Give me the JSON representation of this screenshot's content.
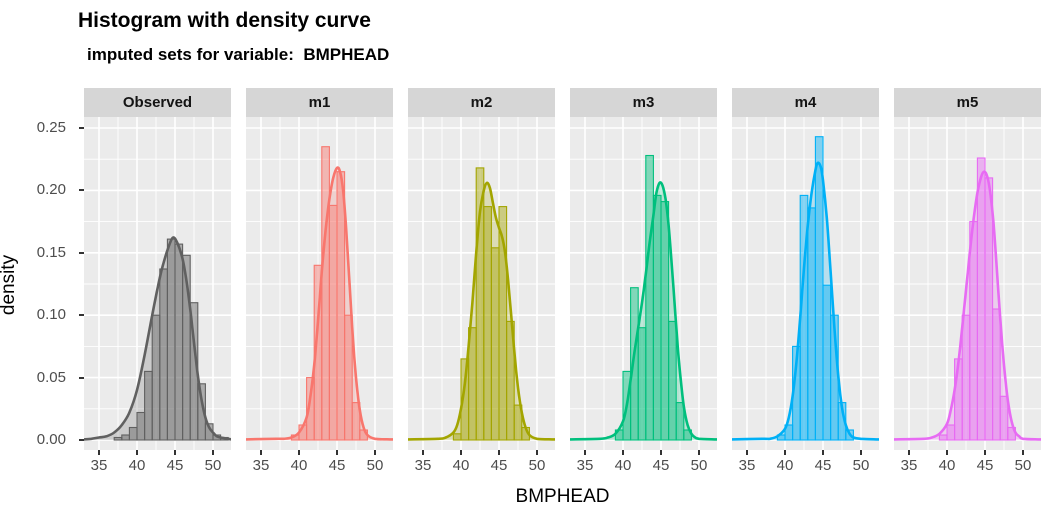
{
  "title": "Histogram with density curve",
  "subtitle": "imputed sets for variable:  BMPHEAD",
  "axes": {
    "y_label": "density",
    "x_label": "BMPHEAD",
    "y_ticks": [
      "0.00",
      "0.05",
      "0.10",
      "0.15",
      "0.20",
      "0.25"
    ],
    "y_tick_values": [
      0.0,
      0.05,
      0.1,
      0.15,
      0.2,
      0.25
    ],
    "x_ticks": [
      "35",
      "40",
      "45",
      "50"
    ],
    "x_tick_values": [
      35,
      40,
      45,
      50
    ]
  },
  "theme": {
    "panel_bg": "#EBEBEB",
    "strip_bg": "#D6D6D6",
    "grid_color": "#FFFFFF",
    "tick_label_color": "#4D4D4D",
    "tick_mark_color": "#333333",
    "title_color": "#000000"
  },
  "chart_data": {
    "type": "histogram+density",
    "facet_variable": "imputation set",
    "x_variable": "BMPHEAD",
    "y_variable": "density",
    "x_domain": [
      33.0,
      52.4
    ],
    "y_domain": [
      0,
      0.25
    ],
    "x_major_gridlines": [
      35,
      40,
      45,
      50
    ],
    "x_minor_gridlines": [
      37.5,
      42.5,
      47.5
    ],
    "y_major_gridlines": [
      0,
      0.05,
      0.1,
      0.15,
      0.2,
      0.25
    ],
    "y_minor_gridlines": [
      0.025,
      0.075,
      0.125,
      0.175,
      0.225
    ],
    "bin_width": 1,
    "facets": [
      {
        "label": "Observed",
        "color": "#606060",
        "bins_start": 37,
        "bin_heights": [
          0.002,
          0.004,
          0.01,
          0.022,
          0.055,
          0.1,
          0.137,
          0.161,
          0.157,
          0.148,
          0.11,
          0.045,
          0.013,
          0.004,
          0.002
        ],
        "density_curve": [
          [
            33,
            0.0005
          ],
          [
            34,
            0.001
          ],
          [
            35,
            0.002
          ],
          [
            36,
            0.003
          ],
          [
            37,
            0.006
          ],
          [
            38,
            0.012
          ],
          [
            39,
            0.022
          ],
          [
            40,
            0.04
          ],
          [
            41,
            0.068
          ],
          [
            42,
            0.1
          ],
          [
            43,
            0.13
          ],
          [
            43.5,
            0.142
          ],
          [
            44,
            0.152
          ],
          [
            44.7,
            0.162
          ],
          [
            45.3,
            0.158
          ],
          [
            46,
            0.145
          ],
          [
            46.5,
            0.128
          ],
          [
            47,
            0.105
          ],
          [
            47.5,
            0.078
          ],
          [
            48,
            0.052
          ],
          [
            48.5,
            0.032
          ],
          [
            49,
            0.018
          ],
          [
            49.5,
            0.01
          ],
          [
            50,
            0.006
          ],
          [
            50.5,
            0.003
          ],
          [
            51,
            0.002
          ],
          [
            52,
            0.001
          ],
          [
            52.4,
            0.0005
          ]
        ]
      },
      {
        "label": "m1",
        "color": "#F8766D",
        "bins_start": 39,
        "bin_heights": [
          0.004,
          0.012,
          0.05,
          0.14,
          0.235,
          0.188,
          0.215,
          0.1,
          0.03,
          0.008
        ],
        "density_curve": [
          [
            33,
            0.0005
          ],
          [
            37,
            0.001
          ],
          [
            38,
            0.001
          ],
          [
            39,
            0.002
          ],
          [
            40,
            0.006
          ],
          [
            41,
            0.018
          ],
          [
            41.5,
            0.035
          ],
          [
            42,
            0.06
          ],
          [
            42.5,
            0.095
          ],
          [
            43,
            0.135
          ],
          [
            43.5,
            0.168
          ],
          [
            44,
            0.193
          ],
          [
            44.5,
            0.21
          ],
          [
            45,
            0.218
          ],
          [
            45.4,
            0.215
          ],
          [
            45.8,
            0.2
          ],
          [
            46.2,
            0.17
          ],
          [
            46.6,
            0.13
          ],
          [
            47,
            0.09
          ],
          [
            47.5,
            0.05
          ],
          [
            48,
            0.024
          ],
          [
            48.5,
            0.01
          ],
          [
            49,
            0.004
          ],
          [
            50,
            0.001
          ],
          [
            52,
            0.0005
          ],
          [
            52.4,
            0.0005
          ]
        ]
      },
      {
        "label": "m2",
        "color": "#A3A500",
        "bins_start": 39,
        "bin_heights": [
          0.005,
          0.065,
          0.09,
          0.218,
          0.187,
          0.154,
          0.187,
          0.095,
          0.028,
          0.01
        ],
        "density_curve": [
          [
            33,
            0.0005
          ],
          [
            37,
            0.001
          ],
          [
            38,
            0.002
          ],
          [
            39,
            0.006
          ],
          [
            39.5,
            0.012
          ],
          [
            40,
            0.025
          ],
          [
            40.5,
            0.045
          ],
          [
            41,
            0.075
          ],
          [
            41.5,
            0.11
          ],
          [
            42,
            0.15
          ],
          [
            42.5,
            0.183
          ],
          [
            43,
            0.2
          ],
          [
            43.4,
            0.206
          ],
          [
            43.8,
            0.202
          ],
          [
            44.2,
            0.19
          ],
          [
            44.6,
            0.178
          ],
          [
            45,
            0.17
          ],
          [
            45.4,
            0.163
          ],
          [
            45.8,
            0.15
          ],
          [
            46.2,
            0.128
          ],
          [
            46.6,
            0.1
          ],
          [
            47,
            0.072
          ],
          [
            47.5,
            0.042
          ],
          [
            48,
            0.022
          ],
          [
            48.5,
            0.01
          ],
          [
            49,
            0.004
          ],
          [
            50,
            0.001
          ],
          [
            52,
            0.0005
          ],
          [
            52.4,
            0.0005
          ]
        ]
      },
      {
        "label": "m3",
        "color": "#00BF7D",
        "bins_start": 39,
        "bin_heights": [
          0.008,
          0.055,
          0.122,
          0.09,
          0.228,
          0.196,
          0.191,
          0.095,
          0.03,
          0.008
        ],
        "density_curve": [
          [
            33,
            0.0005
          ],
          [
            37,
            0.001
          ],
          [
            38,
            0.002
          ],
          [
            39,
            0.005
          ],
          [
            40,
            0.015
          ],
          [
            40.5,
            0.028
          ],
          [
            41,
            0.048
          ],
          [
            41.5,
            0.07
          ],
          [
            42,
            0.09
          ],
          [
            42.5,
            0.11
          ],
          [
            43,
            0.133
          ],
          [
            43.5,
            0.158
          ],
          [
            44,
            0.18
          ],
          [
            44.4,
            0.198
          ],
          [
            44.8,
            0.206
          ],
          [
            45.2,
            0.204
          ],
          [
            45.6,
            0.193
          ],
          [
            46,
            0.172
          ],
          [
            46.4,
            0.142
          ],
          [
            46.8,
            0.108
          ],
          [
            47.2,
            0.075
          ],
          [
            47.6,
            0.048
          ],
          [
            48,
            0.027
          ],
          [
            48.5,
            0.012
          ],
          [
            49,
            0.005
          ],
          [
            49.5,
            0.002
          ],
          [
            50,
            0.001
          ],
          [
            52,
            0.0005
          ],
          [
            52.4,
            0.0005
          ]
        ]
      },
      {
        "label": "m4",
        "color": "#00B0F6",
        "bins_start": 39,
        "bin_heights": [
          0.004,
          0.012,
          0.075,
          0.196,
          0.186,
          0.243,
          0.124,
          0.1,
          0.03,
          0.008
        ],
        "density_curve": [
          [
            33,
            0.0005
          ],
          [
            37,
            0.001
          ],
          [
            38,
            0.001
          ],
          [
            39,
            0.003
          ],
          [
            40,
            0.009
          ],
          [
            40.5,
            0.018
          ],
          [
            41,
            0.035
          ],
          [
            41.5,
            0.062
          ],
          [
            42,
            0.098
          ],
          [
            42.5,
            0.138
          ],
          [
            43,
            0.172
          ],
          [
            43.5,
            0.198
          ],
          [
            44,
            0.216
          ],
          [
            44.3,
            0.222
          ],
          [
            44.7,
            0.219
          ],
          [
            45,
            0.208
          ],
          [
            45.5,
            0.178
          ],
          [
            46,
            0.135
          ],
          [
            46.5,
            0.09
          ],
          [
            47,
            0.052
          ],
          [
            47.5,
            0.026
          ],
          [
            48,
            0.012
          ],
          [
            48.5,
            0.005
          ],
          [
            49,
            0.002
          ],
          [
            50,
            0.001
          ],
          [
            52,
            0.0005
          ],
          [
            52.4,
            0.0005
          ]
        ]
      },
      {
        "label": "m5",
        "color": "#E76BF3",
        "bins_start": 39,
        "bin_heights": [
          0.004,
          0.012,
          0.065,
          0.1,
          0.175,
          0.226,
          0.21,
          0.105,
          0.035,
          0.01
        ],
        "density_curve": [
          [
            33,
            0.0005
          ],
          [
            37,
            0.001
          ],
          [
            38,
            0.002
          ],
          [
            39,
            0.005
          ],
          [
            40,
            0.013
          ],
          [
            40.5,
            0.024
          ],
          [
            41,
            0.04
          ],
          [
            41.5,
            0.062
          ],
          [
            42,
            0.09
          ],
          [
            42.5,
            0.12
          ],
          [
            43,
            0.15
          ],
          [
            43.5,
            0.177
          ],
          [
            44,
            0.198
          ],
          [
            44.5,
            0.211
          ],
          [
            44.9,
            0.215
          ],
          [
            45.3,
            0.211
          ],
          [
            45.7,
            0.198
          ],
          [
            46.1,
            0.175
          ],
          [
            46.5,
            0.142
          ],
          [
            47,
            0.098
          ],
          [
            47.5,
            0.06
          ],
          [
            48,
            0.032
          ],
          [
            48.5,
            0.015
          ],
          [
            49,
            0.006
          ],
          [
            49.5,
            0.003
          ],
          [
            50,
            0.001
          ],
          [
            52,
            0.0005
          ],
          [
            52.4,
            0.0005
          ]
        ]
      }
    ]
  }
}
